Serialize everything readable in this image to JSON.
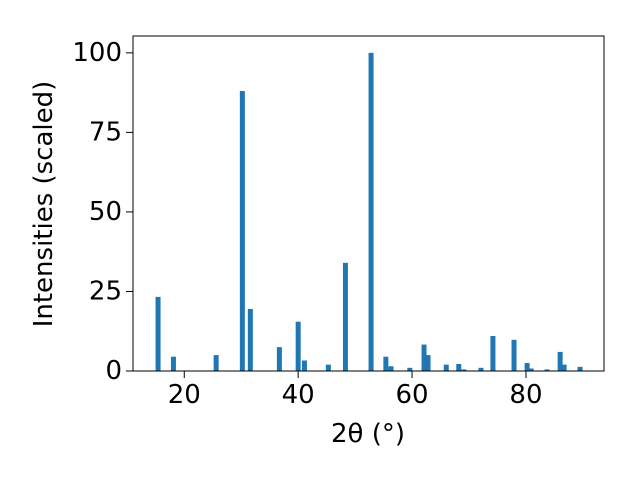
{
  "chart_data": {
    "type": "bar",
    "xlabel": "2θ (°)",
    "ylabel": "Intensities (scaled)",
    "x": [
      15.4,
      18.1,
      25.6,
      30.2,
      31.6,
      36.7,
      40.0,
      41.1,
      45.3,
      48.3,
      52.8,
      55.4,
      56.3,
      59.6,
      62.1,
      62.8,
      66.0,
      68.2,
      69.1,
      72.1,
      74.2,
      77.9,
      80.2,
      80.9,
      83.7,
      86.0,
      86.7,
      89.5
    ],
    "values": [
      23.3,
      4.5,
      5,
      88,
      19.5,
      7.5,
      15.5,
      3.3,
      2,
      34,
      100,
      4.5,
      1.5,
      1,
      8.3,
      5,
      2,
      2.2,
      0.5,
      1,
      11,
      9.8,
      2.5,
      0.8,
      0.5,
      6,
      2,
      1.3
    ],
    "color": "#1f77b4",
    "xlim": [
      11,
      93.7
    ],
    "ylim": [
      0,
      105.3
    ],
    "xticks": [
      20,
      40,
      60,
      80
    ],
    "yticks": [
      0,
      25,
      50,
      75,
      100
    ]
  }
}
